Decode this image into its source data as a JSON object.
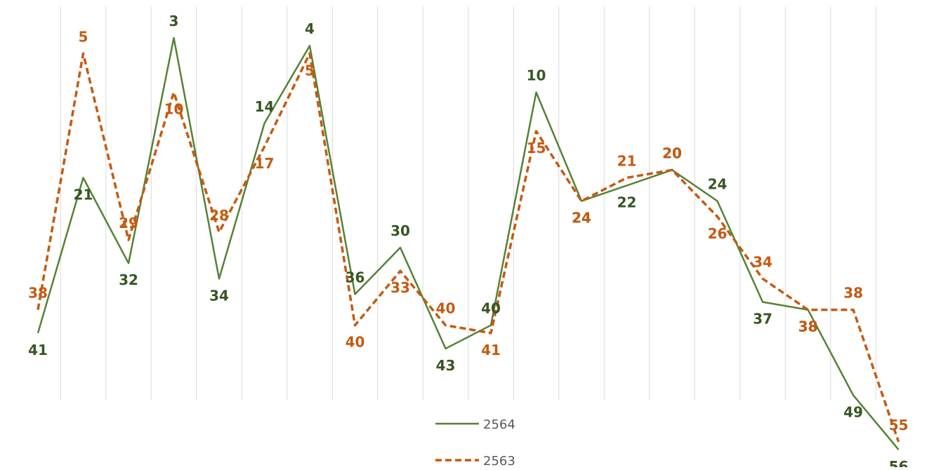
{
  "chart_data": {
    "type": "line",
    "title": "",
    "xlabel": "",
    "ylabel": "",
    "y_inverted": true,
    "ylim": [
      1,
      60
    ],
    "grid": "vertical-lines",
    "legend_position": "bottom-center",
    "x": [
      1,
      2,
      3,
      4,
      5,
      6,
      7,
      8,
      9,
      10,
      11,
      12,
      13,
      14,
      15,
      16,
      17,
      18,
      19,
      20
    ],
    "series": [
      {
        "name": "2564",
        "color": "#548235",
        "label_color": "#375623",
        "line_style": "solid",
        "values": [
          41,
          21,
          32,
          3,
          34,
          14,
          4,
          36,
          30,
          43,
          40,
          10,
          24,
          22,
          20,
          24,
          37,
          38,
          49,
          56
        ]
      },
      {
        "name": "2563",
        "color": "#C55A11",
        "label_color": "#C55A11",
        "line_style": "dashed",
        "values": [
          38,
          5,
          29,
          10,
          28,
          17,
          5,
          40,
          33,
          40,
          41,
          15,
          24,
          21,
          20,
          26,
          34,
          38,
          38,
          55
        ]
      }
    ]
  }
}
